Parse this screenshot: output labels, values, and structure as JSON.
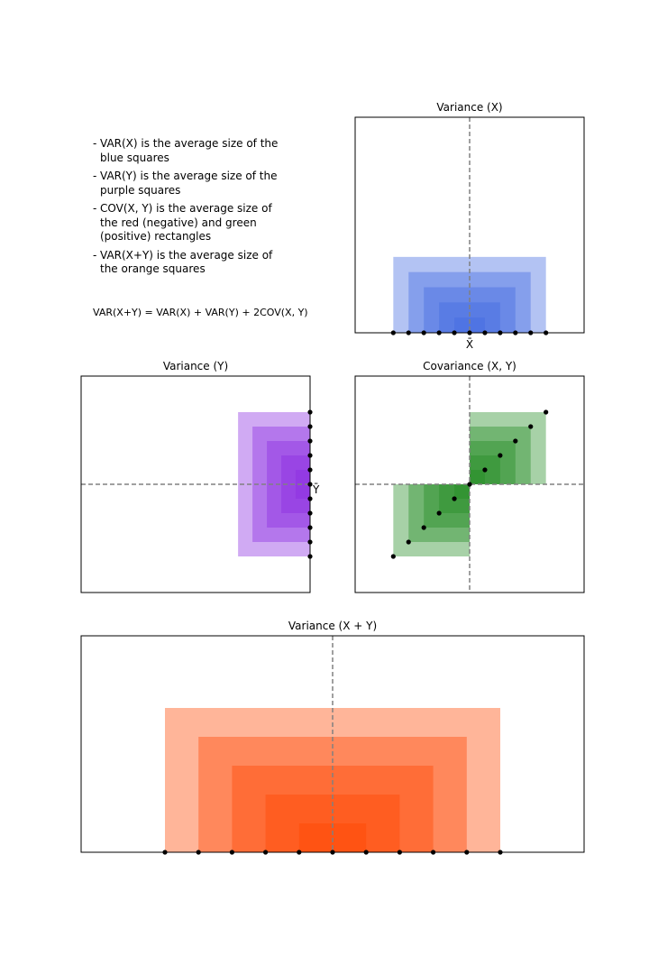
{
  "notes": [
    "VAR(X) is the average size of the\nblue squares",
    "VAR(Y) is the average size of the\npurple squares",
    "COV(X, Y) is the average size of\nthe red (negative) and green\n(positive) rectangles",
    "VAR(X+Y) is the average size of\nthe orange squares"
  ],
  "formula": "VAR(X+Y) = VAR(X) + VAR(Y) + 2COV(X, Y)",
  "colors": {
    "x_squares": "#4169e1",
    "y_squares": "#8a2be2",
    "cov_positive": "#228b22",
    "cov_negative": "#ff0000",
    "sum_squares": "#ff4500",
    "points": "#000000",
    "mean_line": "#808080"
  },
  "chart_data": [
    {
      "type": "scatter",
      "title": "Variance (X)",
      "x_tick_label": "X̄",
      "x": [
        -5,
        -4,
        -3,
        -2,
        -1,
        0,
        1,
        2,
        3,
        4,
        5
      ],
      "y": [
        0,
        0,
        0,
        0,
        0,
        0,
        0,
        0,
        0,
        0,
        0
      ],
      "mean_x": 0,
      "xlim": [
        -7.5,
        7.5
      ],
      "ylim": [
        0,
        14.2
      ],
      "squares": "blue squares with side |x - mean| anchored on the x axis"
    },
    {
      "type": "scatter",
      "title": "Variance (Y)",
      "y_tick_label": "Ȳ",
      "x": [
        0,
        0,
        0,
        0,
        0,
        0,
        0,
        0,
        0,
        0,
        0
      ],
      "y": [
        5,
        4,
        3,
        2,
        1,
        0,
        -1,
        -2,
        -3,
        -4,
        -5
      ],
      "mean_y": 0,
      "xlim": [
        -15.9,
        0
      ],
      "ylim": [
        -7.5,
        7.5
      ],
      "squares": "purple squares with side |y - mean| anchored on the y axis"
    },
    {
      "type": "scatter",
      "title": "Covariance (X, Y)",
      "x": [
        -5,
        -4,
        -3,
        -2,
        -1,
        0,
        1,
        2,
        3,
        4,
        5
      ],
      "y": [
        -5,
        -4,
        -3,
        -2,
        -1,
        0,
        1,
        2,
        3,
        4,
        5
      ],
      "mean_x": 0,
      "mean_y": 0,
      "xlim": [
        -7.5,
        7.5
      ],
      "ylim": [
        -7.5,
        7.5
      ],
      "rectangles": "green where (x - mean_x)(y - mean_y) > 0, red where < 0"
    },
    {
      "type": "scatter",
      "title": "Variance (X + Y)",
      "x": [
        -10,
        -8,
        -6,
        -4,
        -2,
        0,
        2,
        4,
        6,
        8,
        10
      ],
      "y": [
        0,
        0,
        0,
        0,
        0,
        0,
        0,
        0,
        0,
        0,
        0
      ],
      "mean_x": 0,
      "xlim": [
        -15,
        15
      ],
      "ylim": [
        0,
        15
      ],
      "squares": "orange squares with side |x - mean| anchored on the x axis"
    }
  ]
}
